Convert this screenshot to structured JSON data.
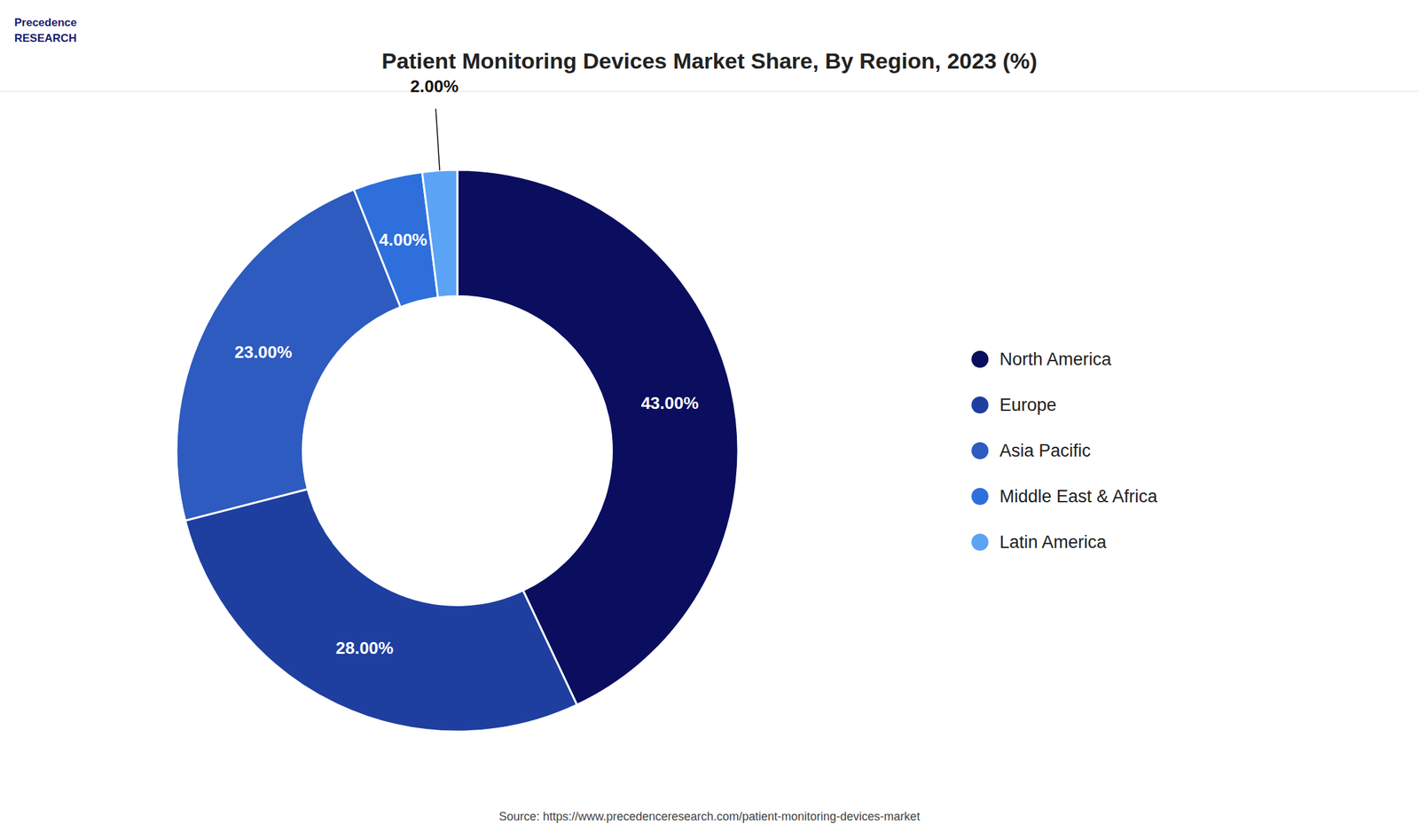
{
  "chart_data": {
    "type": "donut",
    "title": "Patient Monitoring Devices Market Share, By Region, 2023 (%)",
    "categories": [
      "North America",
      "Europe",
      "Asia Pacific",
      "Middle East & Africa",
      "Latin America"
    ],
    "values": [
      43.0,
      28.0,
      23.0,
      4.0,
      2.0
    ],
    "value_labels": [
      "43.00%",
      "28.00%",
      "23.00%",
      "4.00%",
      "2.00%"
    ],
    "colors": [
      "#0b0e5e",
      "#1e3fa0",
      "#2d5bbf",
      "#2e6fdc",
      "#5ba3f5"
    ],
    "data_labels": true,
    "legend": "right",
    "annotations": [
      "Source: https://www.precedenceresearch.com/patient-monitoring-devices-market",
      "Precedence\nRESEARCH"
    ]
  }
}
